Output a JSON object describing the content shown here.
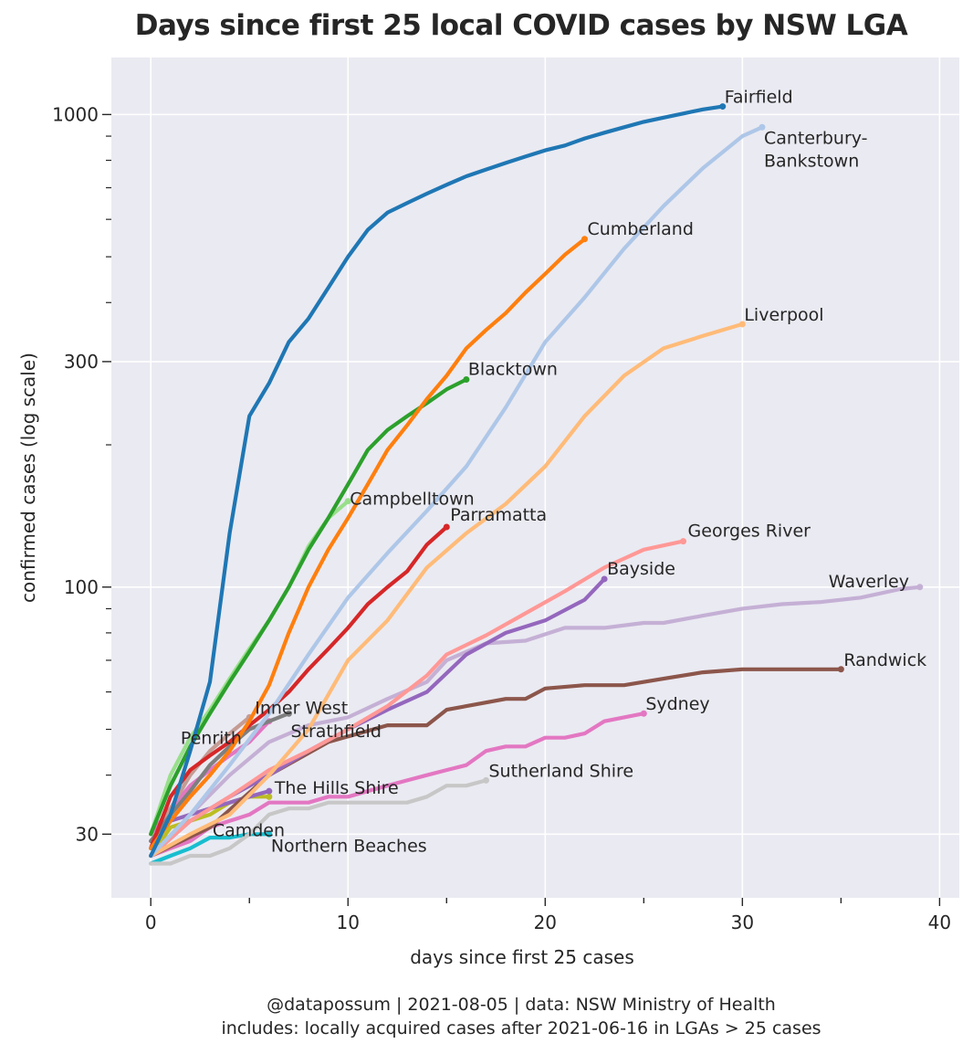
{
  "chart_data": {
    "type": "line",
    "title": "Days since first 25 local COVID cases by NSW LGA",
    "xlabel": "days since first 25 cases",
    "ylabel": "confirmed cases (log scale)",
    "yscale": "log",
    "xlim": [
      -2,
      41
    ],
    "ylim": [
      22,
      1320
    ],
    "grid": true,
    "legend": "none (direct end labels)",
    "xticks": [
      0,
      10,
      20,
      30,
      40
    ],
    "yticks": [
      30,
      100,
      300,
      1000
    ],
    "series": [
      {
        "name": "Northern Beaches",
        "color": "#17becf",
        "x": [
          0,
          1,
          2,
          3,
          4,
          5,
          6
        ],
        "y": [
          26,
          27,
          28,
          29.5,
          29.5,
          30,
          30
        ]
      },
      {
        "name": "Camden",
        "color": "#bcbd22",
        "x": [
          0,
          1,
          2,
          3,
          4,
          5,
          6
        ],
        "y": [
          27,
          31,
          32,
          33,
          35,
          36,
          36
        ]
      },
      {
        "name": "Sutherland Shire",
        "color": "#c7c7c7",
        "x": [
          0,
          1,
          2,
          3,
          4,
          5,
          6,
          7,
          8,
          9,
          10,
          11,
          12,
          13,
          14,
          15,
          16,
          17
        ],
        "y": [
          26,
          26,
          27,
          27,
          28,
          30,
          33,
          34,
          34,
          35,
          35,
          35,
          35,
          35,
          36,
          38,
          38,
          39
        ]
      },
      {
        "name": "The Hills Shire",
        "color": "#9467bd",
        "x": [
          0,
          1,
          2,
          3,
          4,
          5,
          6
        ],
        "y": [
          29,
          32,
          33,
          34,
          35,
          36,
          37
        ]
      },
      {
        "name": "Penrith",
        "color": "#e377c2",
        "x": [
          0,
          1,
          2,
          3,
          4,
          5,
          6
        ],
        "y": [
          30,
          34,
          38,
          41,
          44,
          47,
          52
        ]
      },
      {
        "name": "Inner West",
        "color": "#c49c94",
        "x": [
          0,
          1,
          2,
          3,
          4,
          5
        ],
        "y": [
          28,
          34,
          40,
          45,
          49,
          53
        ]
      },
      {
        "name": "Strathfield",
        "color": "#7f7f7f",
        "x": [
          0,
          1,
          2,
          3,
          4,
          5,
          6,
          7
        ],
        "y": [
          29,
          33,
          37,
          42,
          46,
          50,
          52,
          54
        ]
      },
      {
        "name": "Sydney",
        "color": "#e377c2",
        "x": [
          0,
          1,
          2,
          3,
          4,
          5,
          6,
          7,
          8,
          9,
          10,
          11,
          12,
          13,
          14,
          15,
          16,
          17,
          18,
          19,
          20,
          21,
          22,
          23,
          24,
          25
        ],
        "y": [
          27,
          28,
          29,
          31,
          32,
          33,
          35,
          35,
          35,
          36,
          36,
          37,
          38,
          39,
          40,
          41,
          42,
          45,
          46,
          46,
          48,
          48,
          49,
          52,
          53,
          54
        ]
      },
      {
        "name": "Randwick",
        "color": "#8c564b",
        "x": [
          0,
          3,
          6,
          9,
          12,
          14,
          15,
          18,
          19,
          20,
          22,
          24,
          26,
          28,
          30,
          32,
          35
        ],
        "y": [
          27,
          31,
          40,
          47,
          51,
          51,
          55,
          58,
          58,
          61,
          62,
          62,
          64,
          66,
          67,
          67,
          67
        ]
      },
      {
        "name": "Waverley",
        "color": "#c5b0d5",
        "x": [
          0,
          2,
          4,
          6,
          8,
          10,
          12,
          14,
          15,
          17,
          19,
          21,
          23,
          25,
          26,
          28,
          30,
          32,
          34,
          36,
          38,
          39
        ],
        "y": [
          27,
          33,
          40,
          47,
          51,
          53,
          58,
          63,
          70,
          76,
          77,
          82,
          82,
          84,
          84,
          87,
          90,
          92,
          93,
          95,
          99,
          100
        ]
      },
      {
        "name": "Bayside",
        "color": "#9467bd",
        "x": [
          0,
          2,
          4,
          6,
          8,
          10,
          12,
          14,
          16,
          18,
          20,
          22,
          23
        ],
        "y": [
          27,
          32,
          36,
          40,
          45,
          50,
          55,
          60,
          72,
          80,
          85,
          94,
          104
        ]
      },
      {
        "name": "Georges River",
        "color": "#ff9896",
        "x": [
          0,
          2,
          4,
          6,
          8,
          10,
          12,
          14,
          15,
          17,
          19,
          21,
          23,
          25,
          27
        ],
        "y": [
          27,
          32,
          36,
          41,
          45,
          50,
          56,
          65,
          72,
          79,
          88,
          98,
          110,
          120,
          125
        ]
      },
      {
        "name": "Liverpool",
        "color": "#ffbb78",
        "x": [
          0,
          2,
          4,
          6,
          8,
          10,
          12,
          14,
          16,
          18,
          20,
          22,
          24,
          26,
          28,
          30
        ],
        "y": [
          27,
          30,
          33,
          40,
          50,
          70,
          85,
          110,
          130,
          150,
          180,
          230,
          280,
          320,
          340,
          360
        ]
      },
      {
        "name": "Parramatta",
        "color": "#d62728",
        "x": [
          0,
          1,
          2,
          3,
          4,
          5,
          6,
          7,
          8,
          9,
          10,
          11,
          12,
          13,
          14,
          15
        ],
        "y": [
          28,
          36,
          41,
          44,
          47,
          51,
          55,
          60,
          67,
          74,
          82,
          92,
          100,
          108,
          123,
          134
        ]
      },
      {
        "name": "Campbelltown",
        "color": "#98df8a",
        "x": [
          0,
          1,
          2,
          3,
          4,
          5,
          6,
          7,
          8,
          9,
          10
        ],
        "y": [
          30,
          40,
          48,
          55,
          64,
          74,
          85,
          100,
          122,
          140,
          152
        ]
      },
      {
        "name": "Blacktown",
        "color": "#2ca02c",
        "x": [
          0,
          1,
          2,
          3,
          4,
          5,
          6,
          7,
          8,
          9,
          10,
          11,
          12,
          13,
          14,
          15,
          16
        ],
        "y": [
          30,
          38,
          46,
          54,
          63,
          73,
          85,
          100,
          120,
          140,
          165,
          195,
          215,
          230,
          245,
          262,
          275
        ]
      },
      {
        "name": "Cumberland",
        "color": "#ff7f0e",
        "x": [
          0,
          1,
          2,
          3,
          4,
          5,
          6,
          7,
          8,
          9,
          10,
          11,
          12,
          13,
          14,
          15,
          16,
          17,
          18,
          19,
          20,
          21,
          22
        ],
        "y": [
          28,
          32,
          36,
          40,
          45,
          52,
          62,
          80,
          100,
          120,
          140,
          165,
          195,
          220,
          250,
          280,
          320,
          350,
          380,
          420,
          460,
          505,
          545
        ]
      },
      {
        "name": "Canterbury-Bankstown",
        "color": "#aec7e8",
        "x": [
          0,
          2,
          4,
          6,
          8,
          10,
          12,
          14,
          16,
          18,
          20,
          22,
          24,
          26,
          28,
          30,
          31
        ],
        "y": [
          27,
          33,
          42,
          54,
          72,
          95,
          118,
          145,
          180,
          240,
          330,
          410,
          520,
          640,
          770,
          900,
          940
        ]
      },
      {
        "name": "Fairfield",
        "color": "#1f77b4",
        "x": [
          0,
          1,
          2,
          3,
          4,
          5,
          6,
          7,
          8,
          9,
          10,
          11,
          12,
          13,
          14,
          15,
          16,
          17,
          18,
          19,
          20,
          21,
          22,
          23,
          24,
          25,
          26,
          27,
          28,
          29
        ],
        "y": [
          27,
          33,
          45,
          63,
          130,
          230,
          270,
          330,
          370,
          430,
          500,
          570,
          620,
          650,
          680,
          710,
          740,
          765,
          790,
          815,
          840,
          860,
          890,
          915,
          940,
          965,
          985,
          1005,
          1025,
          1040
        ]
      }
    ]
  },
  "footer": {
    "line1": "@datapossum | 2021-08-05 | data: NSW Ministry of Health",
    "line2": "includes: locally acquired cases after 2021-06-16 in LGAs > 25 cases"
  }
}
